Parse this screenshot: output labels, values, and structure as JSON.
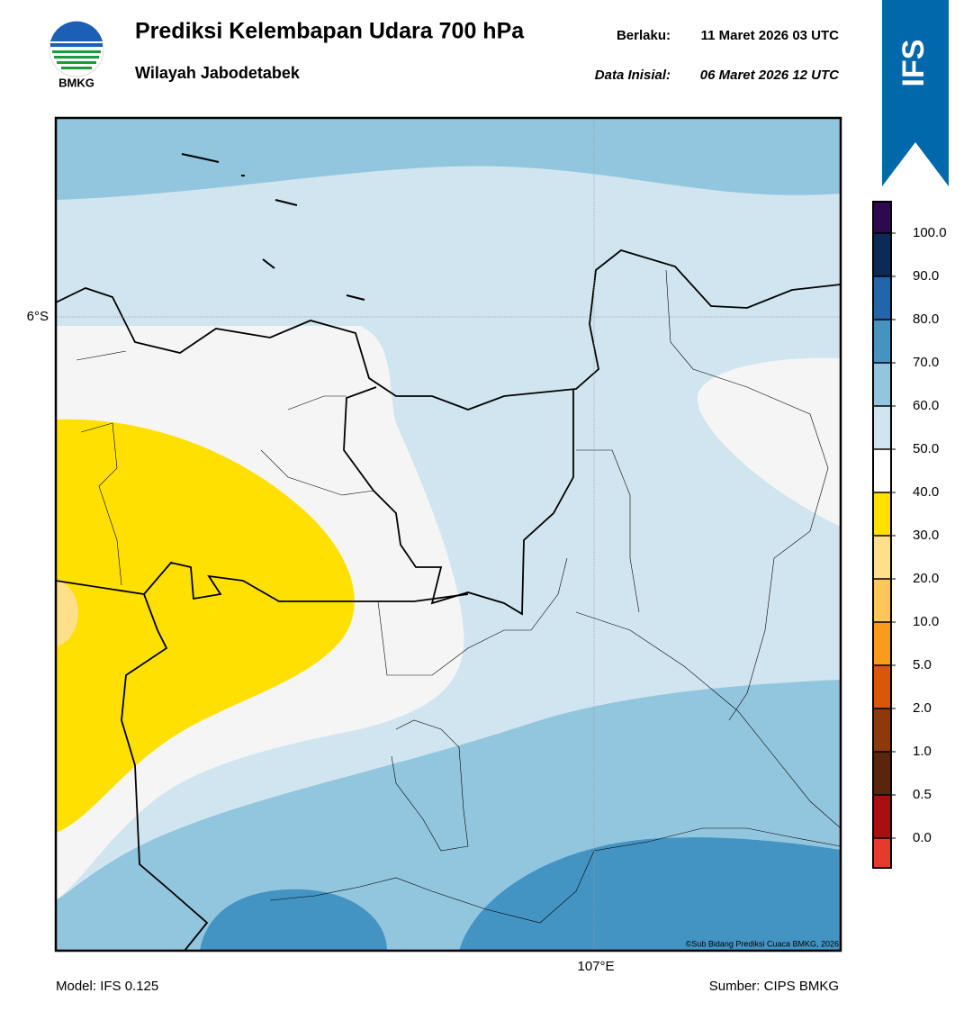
{
  "header": {
    "title": "Prediksi Kelembapan Udara 700 hPa",
    "subtitle": "Wilayah Jabodetabek",
    "valid_label": "Berlaku:",
    "valid_time": "11 Maret 2026 03 UTC",
    "init_label": "Data Inisial:",
    "init_time": "06 Maret 2026 12 UTC",
    "logo_text": "BMKG",
    "badge": "IFS"
  },
  "map": {
    "lat_label": "6°S",
    "lon_label": "107°E",
    "credit": "©Sub Bidang Prediksi Cuaca BMKG, 2026"
  },
  "colorbar": {
    "labels": [
      "100.0",
      "90.0",
      "80.0",
      "70.0",
      "60.0",
      "50.0",
      "40.0",
      "30.0",
      "20.0",
      "10.0",
      "5.0",
      "2.0",
      "1.0",
      "0.5",
      "0.0"
    ],
    "colors": [
      "#2d0a4e",
      "#0b2a55",
      "#2166ac",
      "#4393c3",
      "#92c5de",
      "#d1e5f0",
      "#ffffff",
      "#ffe000",
      "#fee08b",
      "#fdc55a",
      "#f89a1c",
      "#d9560b",
      "#8f3808",
      "#5a2508",
      "#a81010",
      "#e63a2a"
    ]
  },
  "footer": {
    "model": "Model: IFS 0.125",
    "source": "Sumber: CIPS BMKG"
  }
}
